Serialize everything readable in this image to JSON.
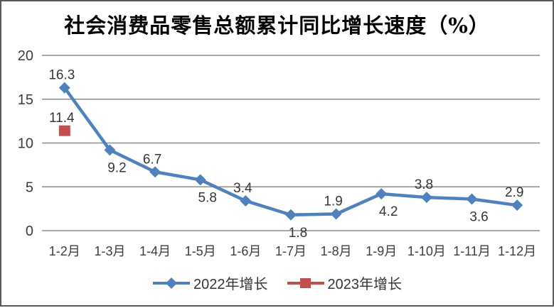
{
  "chart_data": {
    "type": "line",
    "title": "社会消费品零售总额累计同比增长速度（%）",
    "xlabel": "",
    "ylabel": "",
    "categories": [
      "1-2月",
      "1-3月",
      "1-4月",
      "1-5月",
      "1-6月",
      "1-7月",
      "1-8月",
      "1-9月",
      "1-10月",
      "1-11月",
      "1-12月"
    ],
    "series": [
      {
        "name": "2022年增长",
        "color": "#4F81BD",
        "marker": "diamond",
        "values": [
          16.3,
          9.2,
          6.7,
          5.8,
          3.4,
          1.8,
          1.9,
          4.2,
          3.8,
          3.6,
          2.9
        ],
        "label_positions": [
          "above",
          "below",
          "above",
          "below",
          "above",
          "below",
          "above",
          "below",
          "above",
          "below",
          "above"
        ]
      },
      {
        "name": "2023年增长",
        "color": "#C0504D",
        "marker": "square",
        "values": [
          11.4,
          null,
          null,
          null,
          null,
          null,
          null,
          null,
          null,
          null,
          null
        ],
        "label_positions": [
          "above"
        ]
      }
    ],
    "ylim": [
      0,
      20
    ],
    "yticks": [
      0,
      5,
      10,
      15,
      20
    ],
    "grid": true,
    "legend_position": "bottom",
    "gridline_color": "#8C8C8C",
    "text_color": "#3D3D3D",
    "title_color": "#000000",
    "background_color": "#FFFFFF",
    "border_color": "#595959"
  }
}
